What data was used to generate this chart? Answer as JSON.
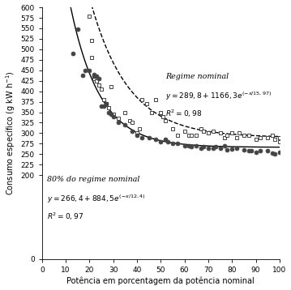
{
  "xlabel": "Potência em porcentagem da potência nominal",
  "ylabel": "Consumo específico (g kW h-1)",
  "xlim": [
    0,
    100
  ],
  "ylim": [
    0,
    600
  ],
  "curve1_a": 289.8,
  "curve1_b": 1166.3,
  "curve1_c": 15.97,
  "curve2_a": 266.4,
  "curve2_b": 884.5,
  "curve2_c": 12.4,
  "scatter_nominal_x": [
    20,
    21,
    21,
    22,
    23,
    24,
    25,
    26,
    27,
    28,
    29,
    30,
    32,
    35,
    37,
    38,
    40,
    41,
    42,
    44,
    46,
    48,
    50,
    51,
    52,
    55,
    57,
    60,
    62,
    63,
    65,
    67,
    68,
    70,
    72,
    75,
    77,
    78,
    80,
    82,
    83,
    85,
    87,
    90,
    92,
    95,
    97,
    98,
    100,
    100
  ],
  "scatter_nominal_y": [
    578,
    520,
    480,
    430,
    425,
    415,
    405,
    380,
    370,
    360,
    410,
    345,
    335,
    350,
    330,
    325,
    300,
    310,
    380,
    370,
    350,
    380,
    350,
    340,
    330,
    310,
    295,
    305,
    295,
    295,
    295,
    310,
    305,
    300,
    305,
    300,
    290,
    295,
    300,
    290,
    300,
    295,
    295,
    285,
    290,
    290,
    295,
    285,
    280,
    290
  ],
  "scatter_80_x": [
    13,
    15,
    17,
    18,
    20,
    22,
    22,
    23,
    24,
    25,
    26,
    27,
    28,
    29,
    30,
    32,
    35,
    38,
    40,
    42,
    45,
    48,
    50,
    52,
    53,
    55,
    57,
    60,
    62,
    63,
    65,
    67,
    68,
    70,
    72,
    73,
    75,
    77,
    78,
    80,
    82,
    85,
    87,
    88,
    90,
    92,
    95,
    97,
    98,
    100
  ],
  "scatter_80_y": [
    490,
    548,
    438,
    450,
    450,
    440,
    435,
    435,
    430,
    365,
    365,
    370,
    350,
    345,
    340,
    326,
    320,
    305,
    295,
    290,
    290,
    285,
    280,
    285,
    280,
    275,
    275,
    270,
    270,
    268,
    270,
    265,
    268,
    265,
    265,
    268,
    265,
    270,
    260,
    262,
    265,
    260,
    258,
    258,
    255,
    258,
    258,
    252,
    250,
    255
  ]
}
